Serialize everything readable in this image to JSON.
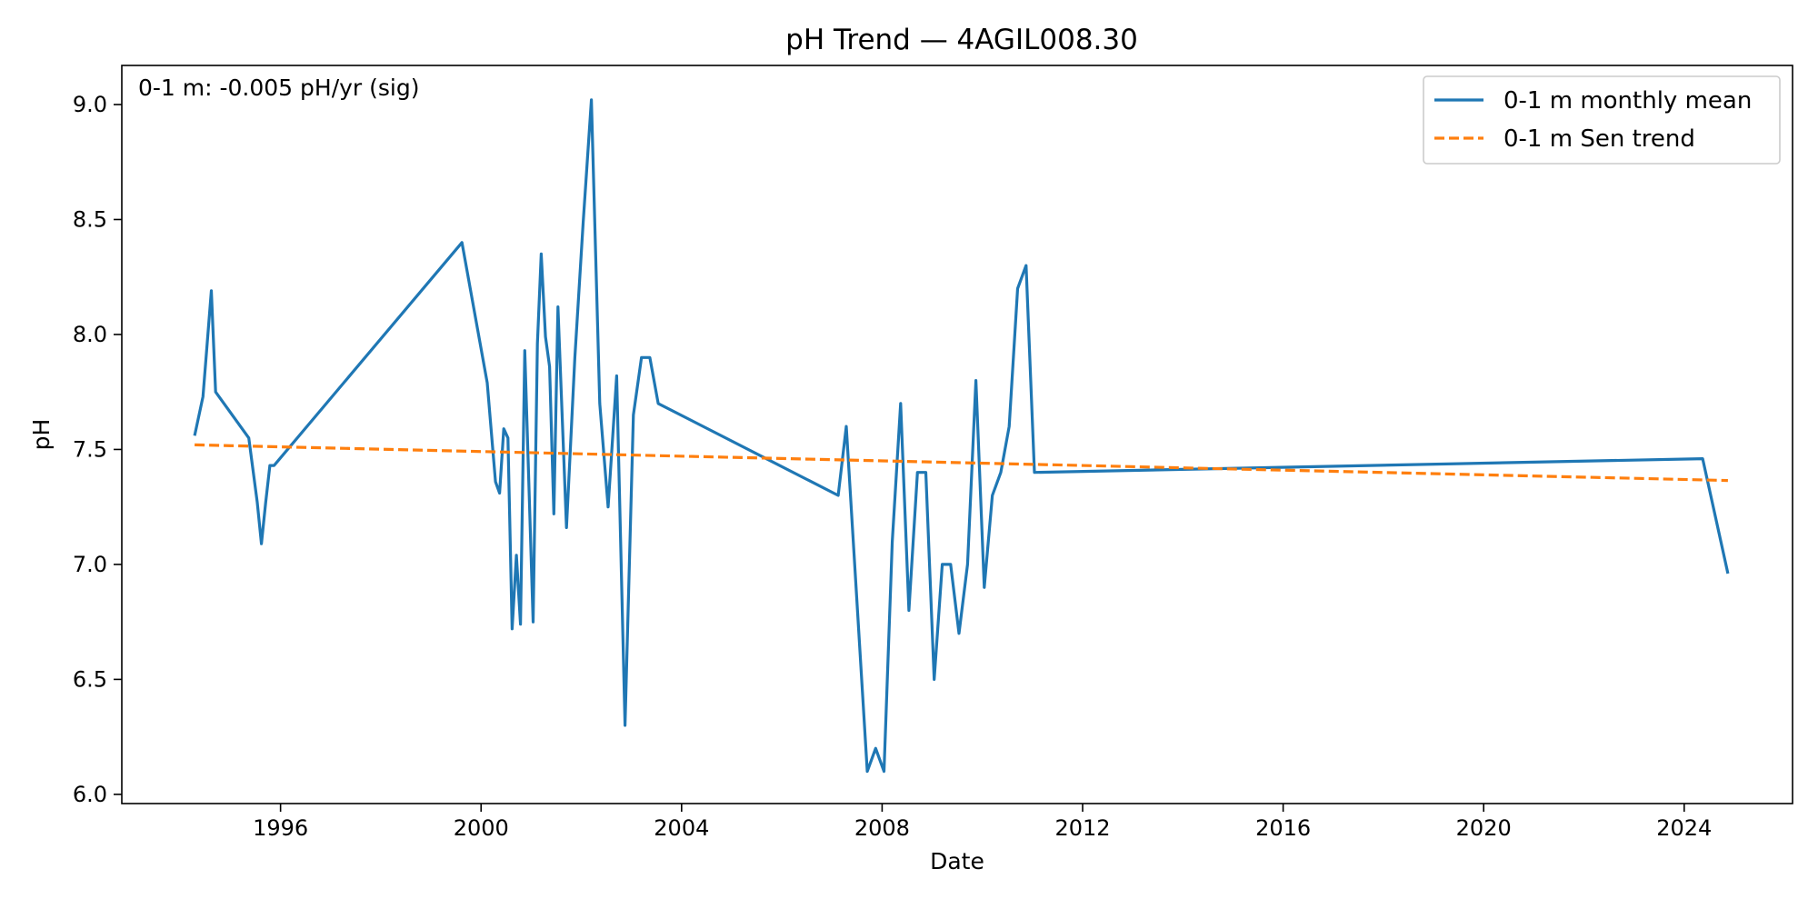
{
  "chart_data": {
    "type": "line",
    "title": "pH Trend — 4AGIL008.30",
    "xlabel": "Date",
    "ylabel": "pH",
    "xlim": [
      "1992-11-01",
      "2026-03-01"
    ],
    "ylim": [
      5.96,
      9.17
    ],
    "x_ticks": [
      "1996",
      "2000",
      "2004",
      "2008",
      "2012",
      "2016",
      "2020",
      "2024"
    ],
    "y_ticks": [
      "6.0",
      "6.5",
      "7.0",
      "7.5",
      "8.0",
      "8.5",
      "9.0"
    ],
    "grid": false,
    "legend_position": "top-right",
    "annotation": "0-1 m: -0.005 pH/yr (sig)",
    "series": [
      {
        "name": "0-1 m monthly mean",
        "style": "solid",
        "color": "#1f77b4",
        "points": [
          [
            "1994-04-15",
            7.56
          ],
          [
            "1994-06-15",
            7.73
          ],
          [
            "1994-08-15",
            8.19
          ],
          [
            "1994-09-15",
            7.75
          ],
          [
            "1995-05-15",
            7.55
          ],
          [
            "1995-07-15",
            7.27
          ],
          [
            "1995-08-15",
            7.09
          ],
          [
            "1995-09-15",
            7.27
          ],
          [
            "1995-10-15",
            7.43
          ],
          [
            "1995-11-15",
            7.43
          ],
          [
            "1999-08-15",
            8.4
          ],
          [
            "2000-02-15",
            7.79
          ],
          [
            "2000-04-15",
            7.36
          ],
          [
            "2000-05-15",
            7.31
          ],
          [
            "2000-06-15",
            7.59
          ],
          [
            "2000-07-15",
            7.55
          ],
          [
            "2000-08-15",
            6.72
          ],
          [
            "2000-09-15",
            7.04
          ],
          [
            "2000-10-15",
            6.74
          ],
          [
            "2000-11-15",
            7.93
          ],
          [
            "2001-01-15",
            6.75
          ],
          [
            "2001-02-15",
            7.96
          ],
          [
            "2001-03-15",
            8.35
          ],
          [
            "2001-04-15",
            7.99
          ],
          [
            "2001-05-15",
            7.86
          ],
          [
            "2001-06-15",
            7.22
          ],
          [
            "2001-07-15",
            8.12
          ],
          [
            "2001-09-15",
            7.16
          ],
          [
            "2001-11-15",
            7.9
          ],
          [
            "2002-01-15",
            8.49
          ],
          [
            "2002-03-15",
            9.02
          ],
          [
            "2002-05-15",
            7.7
          ],
          [
            "2002-07-15",
            7.25
          ],
          [
            "2002-09-15",
            7.82
          ],
          [
            "2002-11-15",
            6.3
          ],
          [
            "2003-01-15",
            7.65
          ],
          [
            "2003-03-15",
            7.9
          ],
          [
            "2003-05-15",
            7.9
          ],
          [
            "2003-07-15",
            7.7
          ],
          [
            "2007-02-15",
            7.3
          ],
          [
            "2007-04-15",
            7.6
          ],
          [
            "2007-09-15",
            6.1
          ],
          [
            "2007-11-15",
            6.2
          ],
          [
            "2008-01-15",
            6.1
          ],
          [
            "2008-03-15",
            7.1
          ],
          [
            "2008-05-15",
            7.7
          ],
          [
            "2008-07-15",
            6.8
          ],
          [
            "2008-09-15",
            7.4
          ],
          [
            "2008-11-15",
            7.4
          ],
          [
            "2009-01-15",
            6.5
          ],
          [
            "2009-03-15",
            7.0
          ],
          [
            "2009-05-15",
            7.0
          ],
          [
            "2009-07-15",
            6.7
          ],
          [
            "2009-09-15",
            7.0
          ],
          [
            "2009-11-15",
            7.8
          ],
          [
            "2010-01-15",
            6.9
          ],
          [
            "2010-03-15",
            7.3
          ],
          [
            "2010-05-15",
            7.4
          ],
          [
            "2010-07-15",
            7.6
          ],
          [
            "2010-09-15",
            8.2
          ],
          [
            "2010-11-15",
            8.3
          ],
          [
            "2011-01-15",
            7.4
          ],
          [
            "2024-05-15",
            7.46
          ],
          [
            "2024-11-15",
            6.96
          ]
        ]
      },
      {
        "name": "0-1 m Sen trend",
        "style": "dashed",
        "color": "#ff7f0e",
        "points": [
          [
            "1994-04-15",
            7.52
          ],
          [
            "2024-11-15",
            7.365
          ]
        ]
      }
    ]
  }
}
